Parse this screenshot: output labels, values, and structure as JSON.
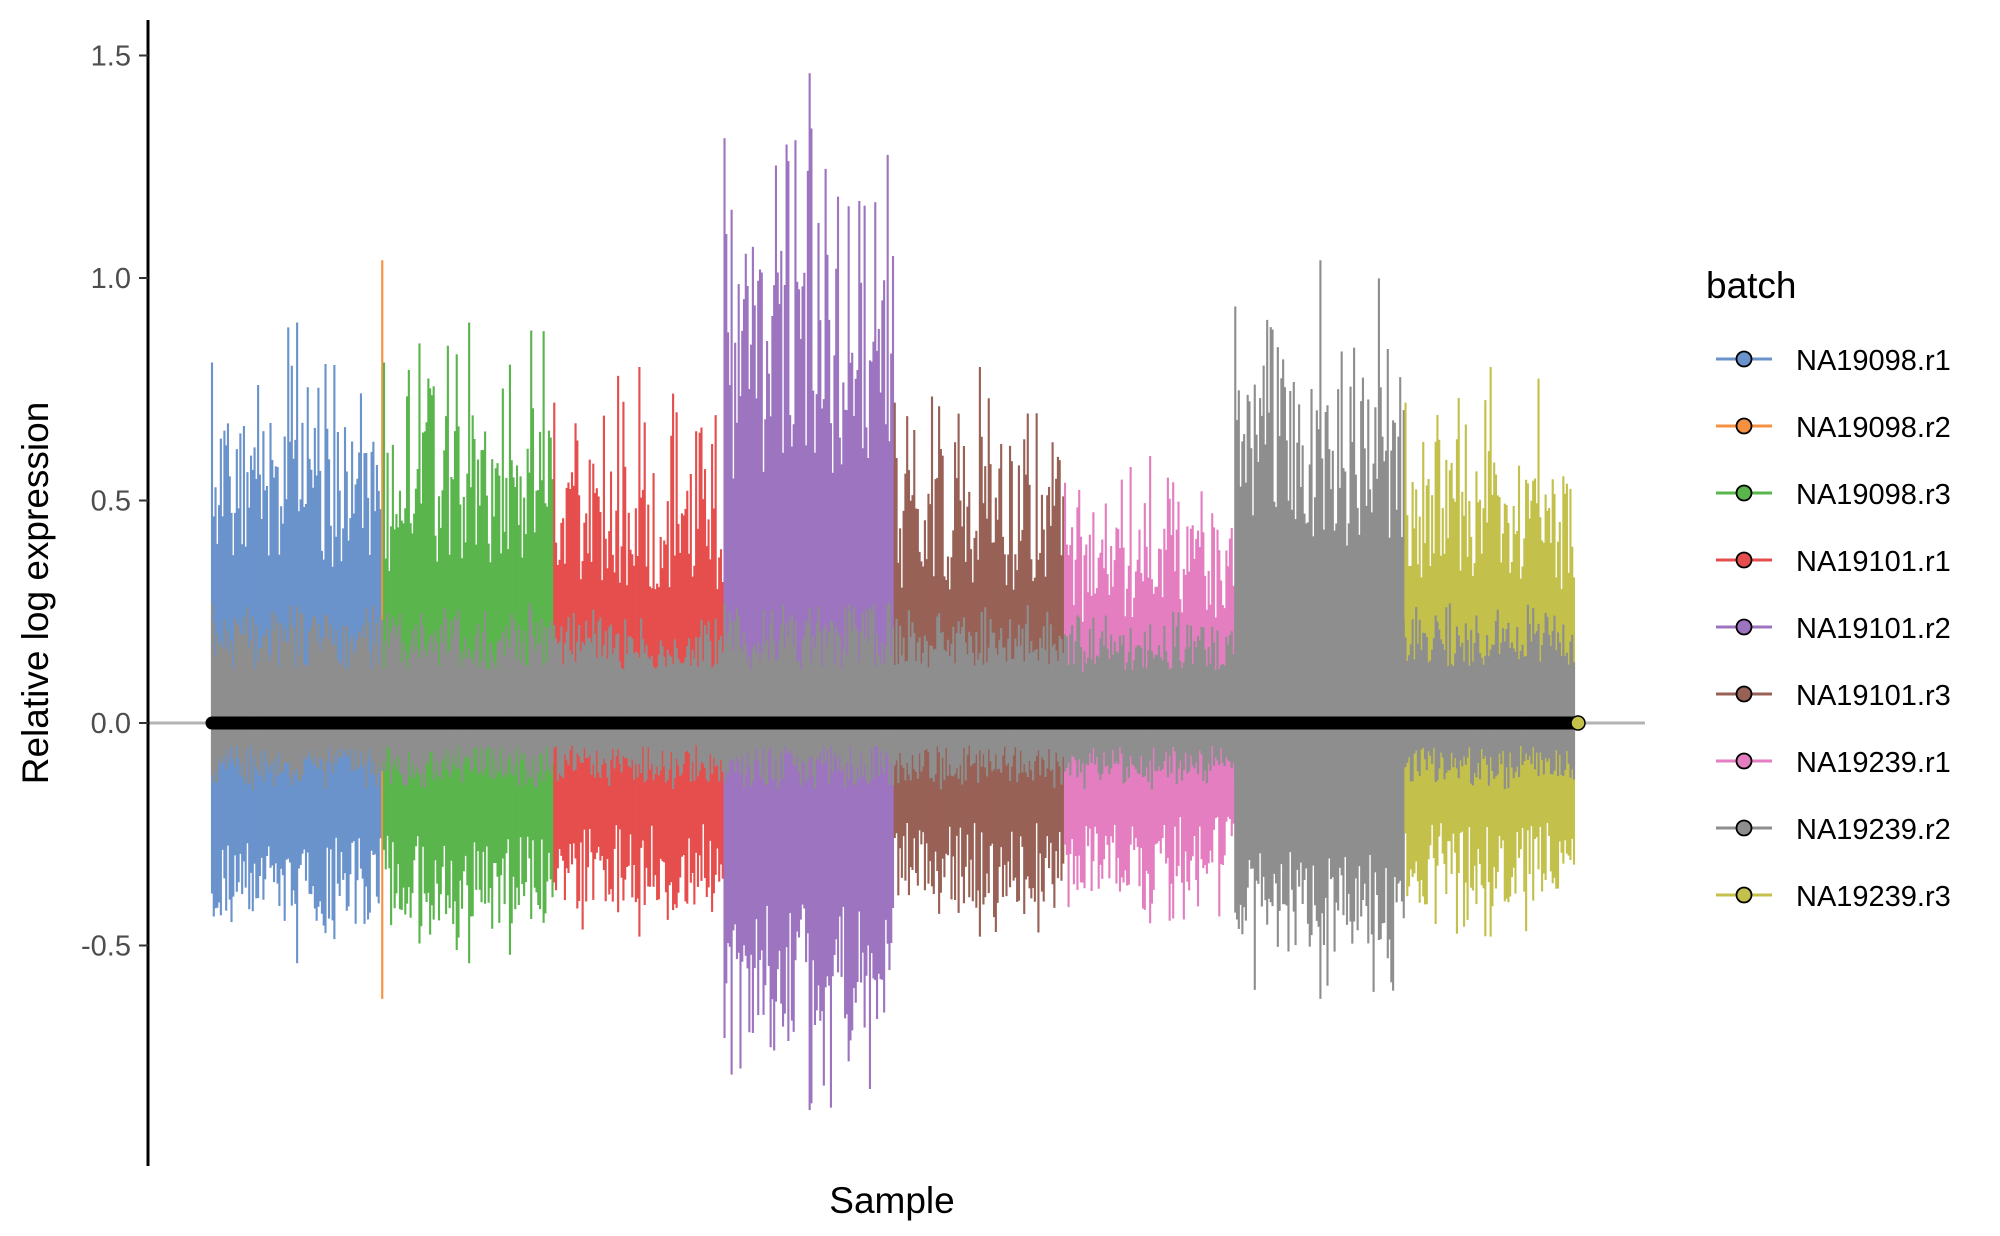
{
  "chart_data": {
    "type": "line",
    "xlabel": "Sample",
    "ylabel": "Relative log expression",
    "ylim": [
      -1.0,
      1.58
    ],
    "y_ticks": [
      {
        "value": 1.5,
        "label": "1.5"
      },
      {
        "value": 1.0,
        "label": "1.0"
      },
      {
        "value": 0.5,
        "label": "0.5"
      },
      {
        "value": 0.0,
        "label": "0.0"
      },
      {
        "value": -0.5,
        "label": "-0.5"
      }
    ],
    "x_ticks_shown": false,
    "grid": false,
    "reference_line_y": 0,
    "legend": {
      "title": "batch",
      "position": "right"
    },
    "series": [
      {
        "name": "NA19098.r1",
        "color": "#6a93cc",
        "n_samples": 96,
        "upper_whisker_peak": 0.9,
        "lower_whisker_min": -0.54
      },
      {
        "name": "NA19098.r2",
        "color": "#f59140",
        "n_samples": 1,
        "upper_whisker_peak": 1.04,
        "lower_whisker_min": -0.62
      },
      {
        "name": "NA19098.r3",
        "color": "#5ab54d",
        "n_samples": 96,
        "upper_whisker_peak": 0.9,
        "lower_whisker_min": -0.54
      },
      {
        "name": "NA19101.r1",
        "color": "#e54e4c",
        "n_samples": 96,
        "upper_whisker_peak": 0.8,
        "lower_whisker_min": -0.48
      },
      {
        "name": "NA19101.r2",
        "color": "#9c74bf",
        "n_samples": 96,
        "upper_whisker_peak": 1.46,
        "lower_whisker_min": -0.87
      },
      {
        "name": "NA19101.r3",
        "color": "#986156",
        "n_samples": 96,
        "upper_whisker_peak": 0.8,
        "lower_whisker_min": -0.48
      },
      {
        "name": "NA19239.r1",
        "color": "#e47ec1",
        "n_samples": 96,
        "upper_whisker_peak": 0.6,
        "lower_whisker_min": -0.45
      },
      {
        "name": "NA19239.r2",
        "color": "#8e8e8e",
        "n_samples": 96,
        "upper_whisker_peak": 1.04,
        "lower_whisker_min": -0.62
      },
      {
        "name": "NA19239.r3",
        "color": "#c3c14b",
        "n_samples": 96,
        "upper_whisker_peak": 0.8,
        "lower_whisker_min": -0.48
      }
    ],
    "median_color": "#000000",
    "reference_line_color": "#b3b3b3"
  }
}
